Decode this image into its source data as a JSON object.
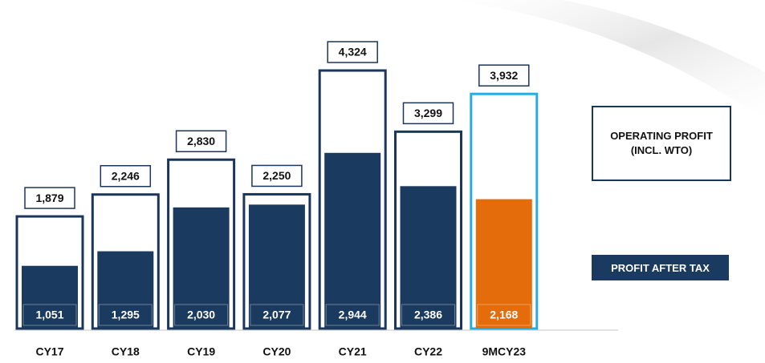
{
  "chart_data": {
    "type": "bar",
    "categories": [
      "CY17",
      "CY18",
      "CY19",
      "CY20",
      "CY21",
      "CY22",
      "9MCY23"
    ],
    "series": [
      {
        "name": "OPERATING PROFIT (INCL. WTO)",
        "color": "#1b365d",
        "colors": [
          "#1b365d",
          "#1b365d",
          "#1b365d",
          "#1b365d",
          "#1b365d",
          "#1b365d",
          "#29abe2"
        ],
        "values": [
          1879,
          2246,
          2830,
          2250,
          4324,
          3299,
          3932
        ],
        "value_labels": [
          "1,879",
          "2,246",
          "2,830",
          "2,250",
          "4,324",
          "3,299",
          "3,932"
        ]
      },
      {
        "name": "PROFIT AFTER TAX",
        "color": "#1b3a5f",
        "colors": [
          "#1b3a5f",
          "#1b3a5f",
          "#1b3a5f",
          "#1b3a5f",
          "#1b3a5f",
          "#1b3a5f",
          "#e46c0a"
        ],
        "values": [
          1051,
          1295,
          2030,
          2077,
          2944,
          2386,
          2168
        ],
        "value_labels": [
          "1,051",
          "1,295",
          "2,030",
          "2,077",
          "2,944",
          "2,386",
          "2,168"
        ]
      }
    ]
  }
}
